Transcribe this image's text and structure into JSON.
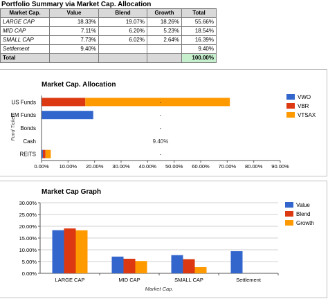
{
  "summary": {
    "title": "Portfolio Summary via Market Cap. Allocation",
    "headers": [
      "Market Cap.",
      "Value",
      "Blend",
      "Growth",
      "Total"
    ],
    "rows": [
      {
        "label": "LARGE CAP",
        "value": "18.33%",
        "blend": "19.07%",
        "growth": "18.26%",
        "total": "55.66%"
      },
      {
        "label": "MID CAP",
        "value": "7.11%",
        "blend": "6.20%",
        "growth": "5.23%",
        "total": "18.54%"
      },
      {
        "label": "SMALL CAP",
        "value": "7.73%",
        "blend": "6.02%",
        "growth": "2.64%",
        "total": "16.39%"
      },
      {
        "label": "Settlement",
        "value": "9.40%",
        "blend": "",
        "growth": "",
        "total": "9.40%"
      }
    ],
    "total_label": "Total",
    "total_value": "100.00%"
  },
  "chart_data": [
    {
      "type": "bar",
      "orientation": "horizontal",
      "stacked": true,
      "title": "Market Cap. Allocation",
      "ylabel": "Fund Ticker",
      "categories": [
        "US Funds",
        "EM Funds",
        "Bonds",
        "Cash",
        "REITS"
      ],
      "series": [
        {
          "name": "VWO",
          "color": "#3366cc",
          "values": [
            0,
            19.5,
            0,
            0,
            0.5
          ]
        },
        {
          "name": "VBR",
          "color": "#dc3912",
          "values": [
            16.5,
            0,
            0,
            0,
            1.0
          ]
        },
        {
          "name": "VTSAX",
          "color": "#ff9900",
          "values": [
            54.5,
            0,
            0,
            0,
            2.0
          ]
        }
      ],
      "annotations": [
        "-",
        "-",
        "-",
        "9.40%",
        "-"
      ],
      "xlim": [
        0,
        90
      ],
      "xticks": [
        "0.00%",
        "10.00%",
        "20.00%",
        "30.00%",
        "40.00%",
        "50.00%",
        "60.00%",
        "70.00%",
        "80.00%",
        "90.00%"
      ],
      "grid": false,
      "legend": "right"
    },
    {
      "type": "bar",
      "title": "Market Cap Graph",
      "xlabel": "Market Cap.",
      "categories": [
        "LARGE CAP",
        "MID CAP",
        "SMALL CAP",
        "Settlement"
      ],
      "series": [
        {
          "name": "Value",
          "color": "#3366cc",
          "values": [
            18.33,
            7.11,
            7.73,
            9.4
          ]
        },
        {
          "name": "Blend",
          "color": "#dc3912",
          "values": [
            19.07,
            6.2,
            6.02,
            0
          ]
        },
        {
          "name": "Growth",
          "color": "#ff9900",
          "values": [
            18.26,
            5.23,
            2.64,
            0
          ]
        }
      ],
      "ylim": [
        0,
        30
      ],
      "yticks": [
        "0.00%",
        "5.00%",
        "10.00%",
        "15.00%",
        "20.00%",
        "25.00%",
        "30.00%"
      ],
      "grid": true,
      "legend": "right"
    }
  ]
}
